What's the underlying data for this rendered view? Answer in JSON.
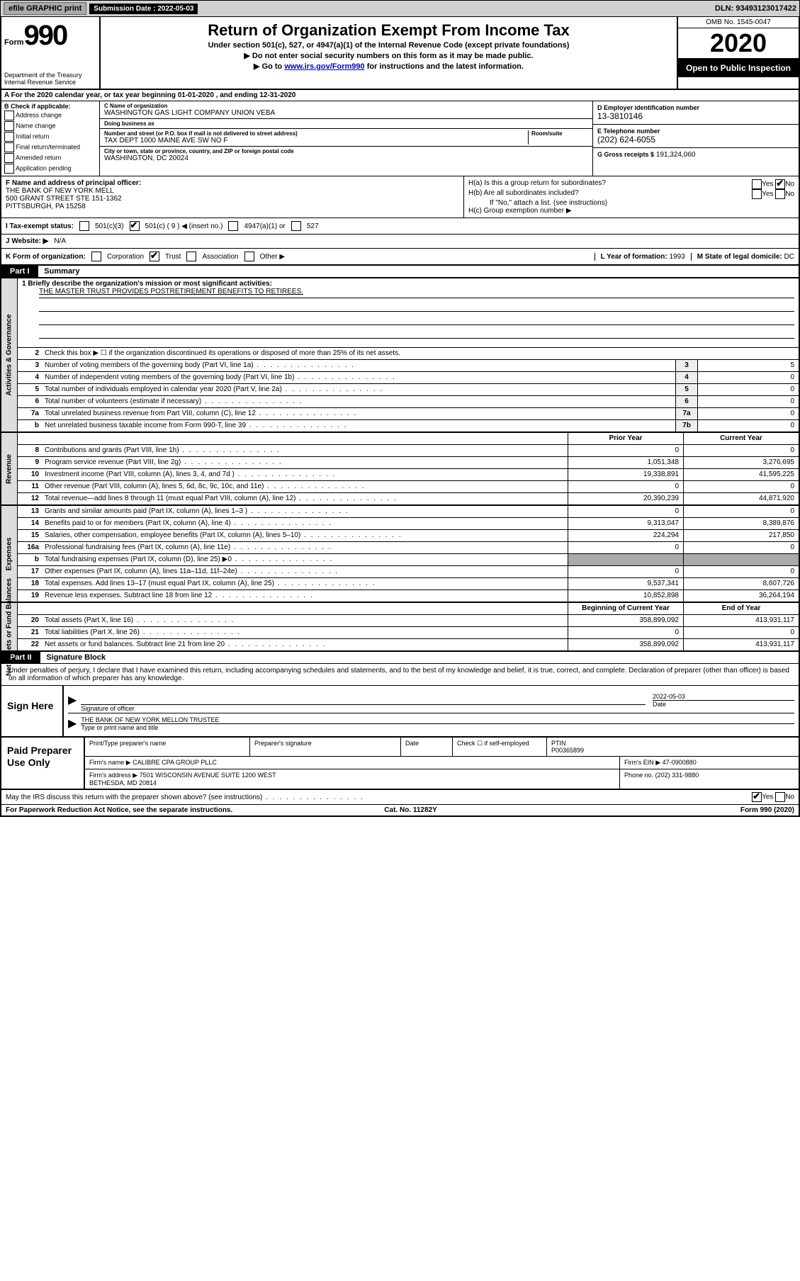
{
  "topbar": {
    "efile": "efile GRAPHIC print",
    "submission_label": "Submission Date :",
    "submission_date": "2022-05-03",
    "dln_label": "DLN:",
    "dln": "93493123017422"
  },
  "header": {
    "form_word": "Form",
    "form_num": "990",
    "dept": "Department of the Treasury\nInternal Revenue Service",
    "title": "Return of Organization Exempt From Income Tax",
    "sub": "Under section 501(c), 527, or 4947(a)(1) of the Internal Revenue Code (except private foundations)",
    "line2": "▶ Do not enter social security numbers on this form as it may be made public.",
    "line3_pre": "▶ Go to ",
    "line3_link": "www.irs.gov/Form990",
    "line3_post": " for instructions and the latest information.",
    "omb": "OMB No. 1545-0047",
    "year": "2020",
    "open": "Open to Public Inspection"
  },
  "rowA": "A For the 2020 calendar year, or tax year beginning 01-01-2020   , and ending 12-31-2020",
  "colB": {
    "hdr": "B Check if applicable:",
    "items": [
      "Address change",
      "Name change",
      "Initial return",
      "Final return/terminated",
      "Amended return",
      "Application pending"
    ]
  },
  "colC": {
    "name_lbl": "C Name of organization",
    "name": "WASHINGTON GAS LIGHT COMPANY UNION VEBA",
    "dba_lbl": "Doing business as",
    "dba": "",
    "addr_lbl": "Number and street (or P.O. box if mail is not delivered to street address)",
    "room_lbl": "Room/suite",
    "addr": "TAX DEPT 1000 MAINE AVE SW NO F",
    "city_lbl": "City or town, state or province, country, and ZIP or foreign postal code",
    "city": "WASHINGTON, DC  20024"
  },
  "colD": {
    "ein_lbl": "D Employer identification number",
    "ein": "13-3810146",
    "tel_lbl": "E Telephone number",
    "tel": "(202) 624-6055",
    "gross_lbl": "G Gross receipts $",
    "gross": "191,324,060"
  },
  "f_block": {
    "f_lbl": "F Name and address of principal officer:",
    "f_name": "THE BANK OF NEW YORK MELL",
    "f_addr1": "500 GRANT STREET STE 151-1362",
    "f_addr2": "PITTSBURGH, PA  15258",
    "ha": "H(a)  Is this a group return for subordinates?",
    "hb": "H(b)  Are all subordinates included?",
    "hb_note": "If \"No,\" attach a list. (see instructions)",
    "hc": "H(c)  Group exemption number ▶"
  },
  "status": {
    "i": "I  Tax-exempt status:",
    "c3": "501(c)(3)",
    "c_insert": "501(c) ( 9 ) ◀ (insert no.)",
    "a1": "4947(a)(1) or",
    "s527": "527"
  },
  "website": {
    "j": "J  Website: ▶",
    "val": "N/A"
  },
  "krow": {
    "k": "K Form of organization:",
    "corp": "Corporation",
    "trust": "Trust",
    "assoc": "Association",
    "other": "Other ▶",
    "l": "L Year of formation:",
    "l_val": "1993",
    "m": "M State of legal domicile:",
    "m_val": "DC"
  },
  "part1": {
    "hdr": "Part I",
    "title": "Summary",
    "line1_lbl": "1  Briefly describe the organization's mission or most significant activities:",
    "line1_val": "THE MASTER TRUST PROVIDES POSTRETIREMENT BENEFITS TO RETIREES.",
    "line2": "Check this box ▶ ☐ if the organization discontinued its operations or disposed of more than 25% of its net assets.",
    "lines_gov": [
      {
        "n": "3",
        "d": "Number of voting members of the governing body (Part VI, line 1a)",
        "box": "3",
        "v": "5"
      },
      {
        "n": "4",
        "d": "Number of independent voting members of the governing body (Part VI, line 1b)",
        "box": "4",
        "v": "0"
      },
      {
        "n": "5",
        "d": "Total number of individuals employed in calendar year 2020 (Part V, line 2a)",
        "box": "5",
        "v": "0"
      },
      {
        "n": "6",
        "d": "Total number of volunteers (estimate if necessary)",
        "box": "6",
        "v": "0"
      },
      {
        "n": "7a",
        "d": "Total unrelated business revenue from Part VIII, column (C), line 12",
        "box": "7a",
        "v": "0"
      },
      {
        "n": "b",
        "d": "Net unrelated business taxable income from Form 990-T, line 39",
        "box": "7b",
        "v": "0"
      }
    ],
    "col_hdr_prior": "Prior Year",
    "col_hdr_curr": "Current Year",
    "lines_rev": [
      {
        "n": "8",
        "d": "Contributions and grants (Part VIII, line 1h)",
        "p": "0",
        "c": "0"
      },
      {
        "n": "9",
        "d": "Program service revenue (Part VIII, line 2g)",
        "p": "1,051,348",
        "c": "3,276,695"
      },
      {
        "n": "10",
        "d": "Investment income (Part VIII, column (A), lines 3, 4, and 7d )",
        "p": "19,338,891",
        "c": "41,595,225"
      },
      {
        "n": "11",
        "d": "Other revenue (Part VIII, column (A), lines 5, 6d, 8c, 9c, 10c, and 11e)",
        "p": "0",
        "c": "0"
      },
      {
        "n": "12",
        "d": "Total revenue—add lines 8 through 11 (must equal Part VIII, column (A), line 12)",
        "p": "20,390,239",
        "c": "44,871,920"
      }
    ],
    "lines_exp": [
      {
        "n": "13",
        "d": "Grants and similar amounts paid (Part IX, column (A), lines 1–3 )",
        "p": "0",
        "c": "0"
      },
      {
        "n": "14",
        "d": "Benefits paid to or for members (Part IX, column (A), line 4)",
        "p": "9,313,047",
        "c": "8,389,876"
      },
      {
        "n": "15",
        "d": "Salaries, other compensation, employee benefits (Part IX, column (A), lines 5–10)",
        "p": "224,294",
        "c": "217,850"
      },
      {
        "n": "16a",
        "d": "Professional fundraising fees (Part IX, column (A), line 11e)",
        "p": "0",
        "c": "0"
      },
      {
        "n": "b",
        "d": "Total fundraising expenses (Part IX, column (D), line 25) ▶0",
        "p": "",
        "c": "",
        "shaded": true
      },
      {
        "n": "17",
        "d": "Other expenses (Part IX, column (A), lines 11a–11d, 11f–24e)",
        "p": "0",
        "c": "0"
      },
      {
        "n": "18",
        "d": "Total expenses. Add lines 13–17 (must equal Part IX, column (A), line 25)",
        "p": "9,537,341",
        "c": "8,607,726"
      },
      {
        "n": "19",
        "d": "Revenue less expenses. Subtract line 18 from line 12",
        "p": "10,852,898",
        "c": "36,264,194"
      }
    ],
    "col_hdr_begin": "Beginning of Current Year",
    "col_hdr_end": "End of Year",
    "lines_net": [
      {
        "n": "20",
        "d": "Total assets (Part X, line 16)",
        "p": "358,899,092",
        "c": "413,931,117"
      },
      {
        "n": "21",
        "d": "Total liabilities (Part X, line 26)",
        "p": "0",
        "c": "0"
      },
      {
        "n": "22",
        "d": "Net assets or fund balances. Subtract line 21 from line 20",
        "p": "358,899,092",
        "c": "413,931,117"
      }
    ]
  },
  "vtabs": {
    "gov": "Activities & Governance",
    "rev": "Revenue",
    "exp": "Expenses",
    "net": "Net Assets or Fund Balances"
  },
  "part2": {
    "hdr": "Part II",
    "title": "Signature Block",
    "text": "Under penalties of perjury, I declare that I have examined this return, including accompanying schedules and statements, and to the best of my knowledge and belief, it is true, correct, and complete. Declaration of preparer (other than officer) is based on all information of which preparer has any knowledge."
  },
  "sign": {
    "label": "Sign Here",
    "sig_of_officer": "Signature of officer",
    "date_lbl": "Date",
    "date": "2022-05-03",
    "name": "THE BANK OF NEW YORK MELLON  TRUSTEE",
    "name_lbl": "Type or print name and title"
  },
  "paid": {
    "label": "Paid Preparer Use Only",
    "r1": {
      "c1": "Print/Type preparer's name",
      "c2": "Preparer's signature",
      "c3": "Date",
      "c4": "Check ☐ if self-employed",
      "c5_lbl": "PTIN",
      "c5": "P00365899"
    },
    "r2": {
      "lbl": "Firm's name    ▶",
      "val": "CALIBRE CPA GROUP PLLC",
      "ein_lbl": "Firm's EIN ▶",
      "ein": "47-0900880"
    },
    "r3": {
      "lbl": "Firm's address ▶",
      "val": "7501 WISCONSIN AVENUE SUITE 1200 WEST\nBETHESDA, MD  20814",
      "ph_lbl": "Phone no.",
      "ph": "(202) 331-9880"
    }
  },
  "discuss": "May the IRS discuss this return with the preparer shown above? (see instructions)",
  "footer": {
    "left": "For Paperwork Reduction Act Notice, see the separate instructions.",
    "mid": "Cat. No. 11282Y",
    "right": "Form 990 (2020)"
  },
  "yes": "Yes",
  "no": "No"
}
